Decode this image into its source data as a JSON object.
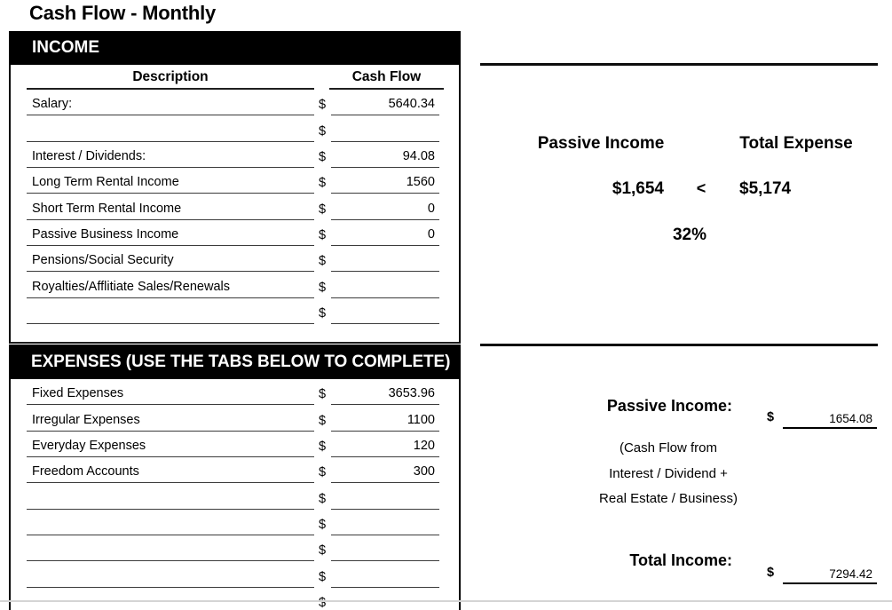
{
  "title": "Cash Flow - Monthly",
  "income": {
    "header": "INCOME",
    "col_desc": "Description",
    "col_value": "Cash Flow",
    "currency": "$",
    "rows": [
      {
        "desc": "Salary:",
        "value": "5640.34"
      },
      {
        "desc": "",
        "value": ""
      },
      {
        "desc": "Interest / Dividends:",
        "value": "94.08"
      },
      {
        "desc": "Long Term Rental Income",
        "value": "1560"
      },
      {
        "desc": "Short Term Rental Income",
        "value": "0"
      },
      {
        "desc": "Passive Business Income",
        "value": "0"
      },
      {
        "desc": "Pensions/Social Security",
        "value": ""
      },
      {
        "desc": "Royalties/Afflitiate Sales/Renewals",
        "value": ""
      },
      {
        "desc": "",
        "value": ""
      }
    ]
  },
  "expenses": {
    "header": "EXPENSES (USE THE TABS BELOW TO COMPLETE)",
    "currency": "$",
    "rows": [
      {
        "desc": "Fixed Expenses",
        "value": "3653.96"
      },
      {
        "desc": "Irregular Expenses",
        "value": "1100"
      },
      {
        "desc": "Everyday Expenses",
        "value": "120"
      },
      {
        "desc": "Freedom Accounts",
        "value": "300"
      },
      {
        "desc": "",
        "value": ""
      },
      {
        "desc": "",
        "value": ""
      },
      {
        "desc": "",
        "value": ""
      },
      {
        "desc": "",
        "value": ""
      },
      {
        "desc": "",
        "value": ""
      }
    ]
  },
  "summary": {
    "passive_income_label": "Passive Income",
    "total_expense_label": "Total Expense",
    "passive_income_value": "$1,654",
    "comparator": "<",
    "total_expense_value": "$5,174",
    "ratio": "32%"
  },
  "details": {
    "passive_income_label": "Passive Income:",
    "passive_income_currency": "$",
    "passive_income_value": "1654.08",
    "caption_line1": "(Cash Flow from",
    "caption_line2": "Interest / Dividend +",
    "caption_line3": "Real Estate / Business)",
    "total_income_label": "Total Income:",
    "total_income_currency": "$",
    "total_income_value": "7294.42"
  },
  "colors": {
    "section_bar_bg": "#000000",
    "section_bar_text": "#ffffff",
    "row_line": "#3b3b3b",
    "pane_edge": "#d4d4d4"
  }
}
